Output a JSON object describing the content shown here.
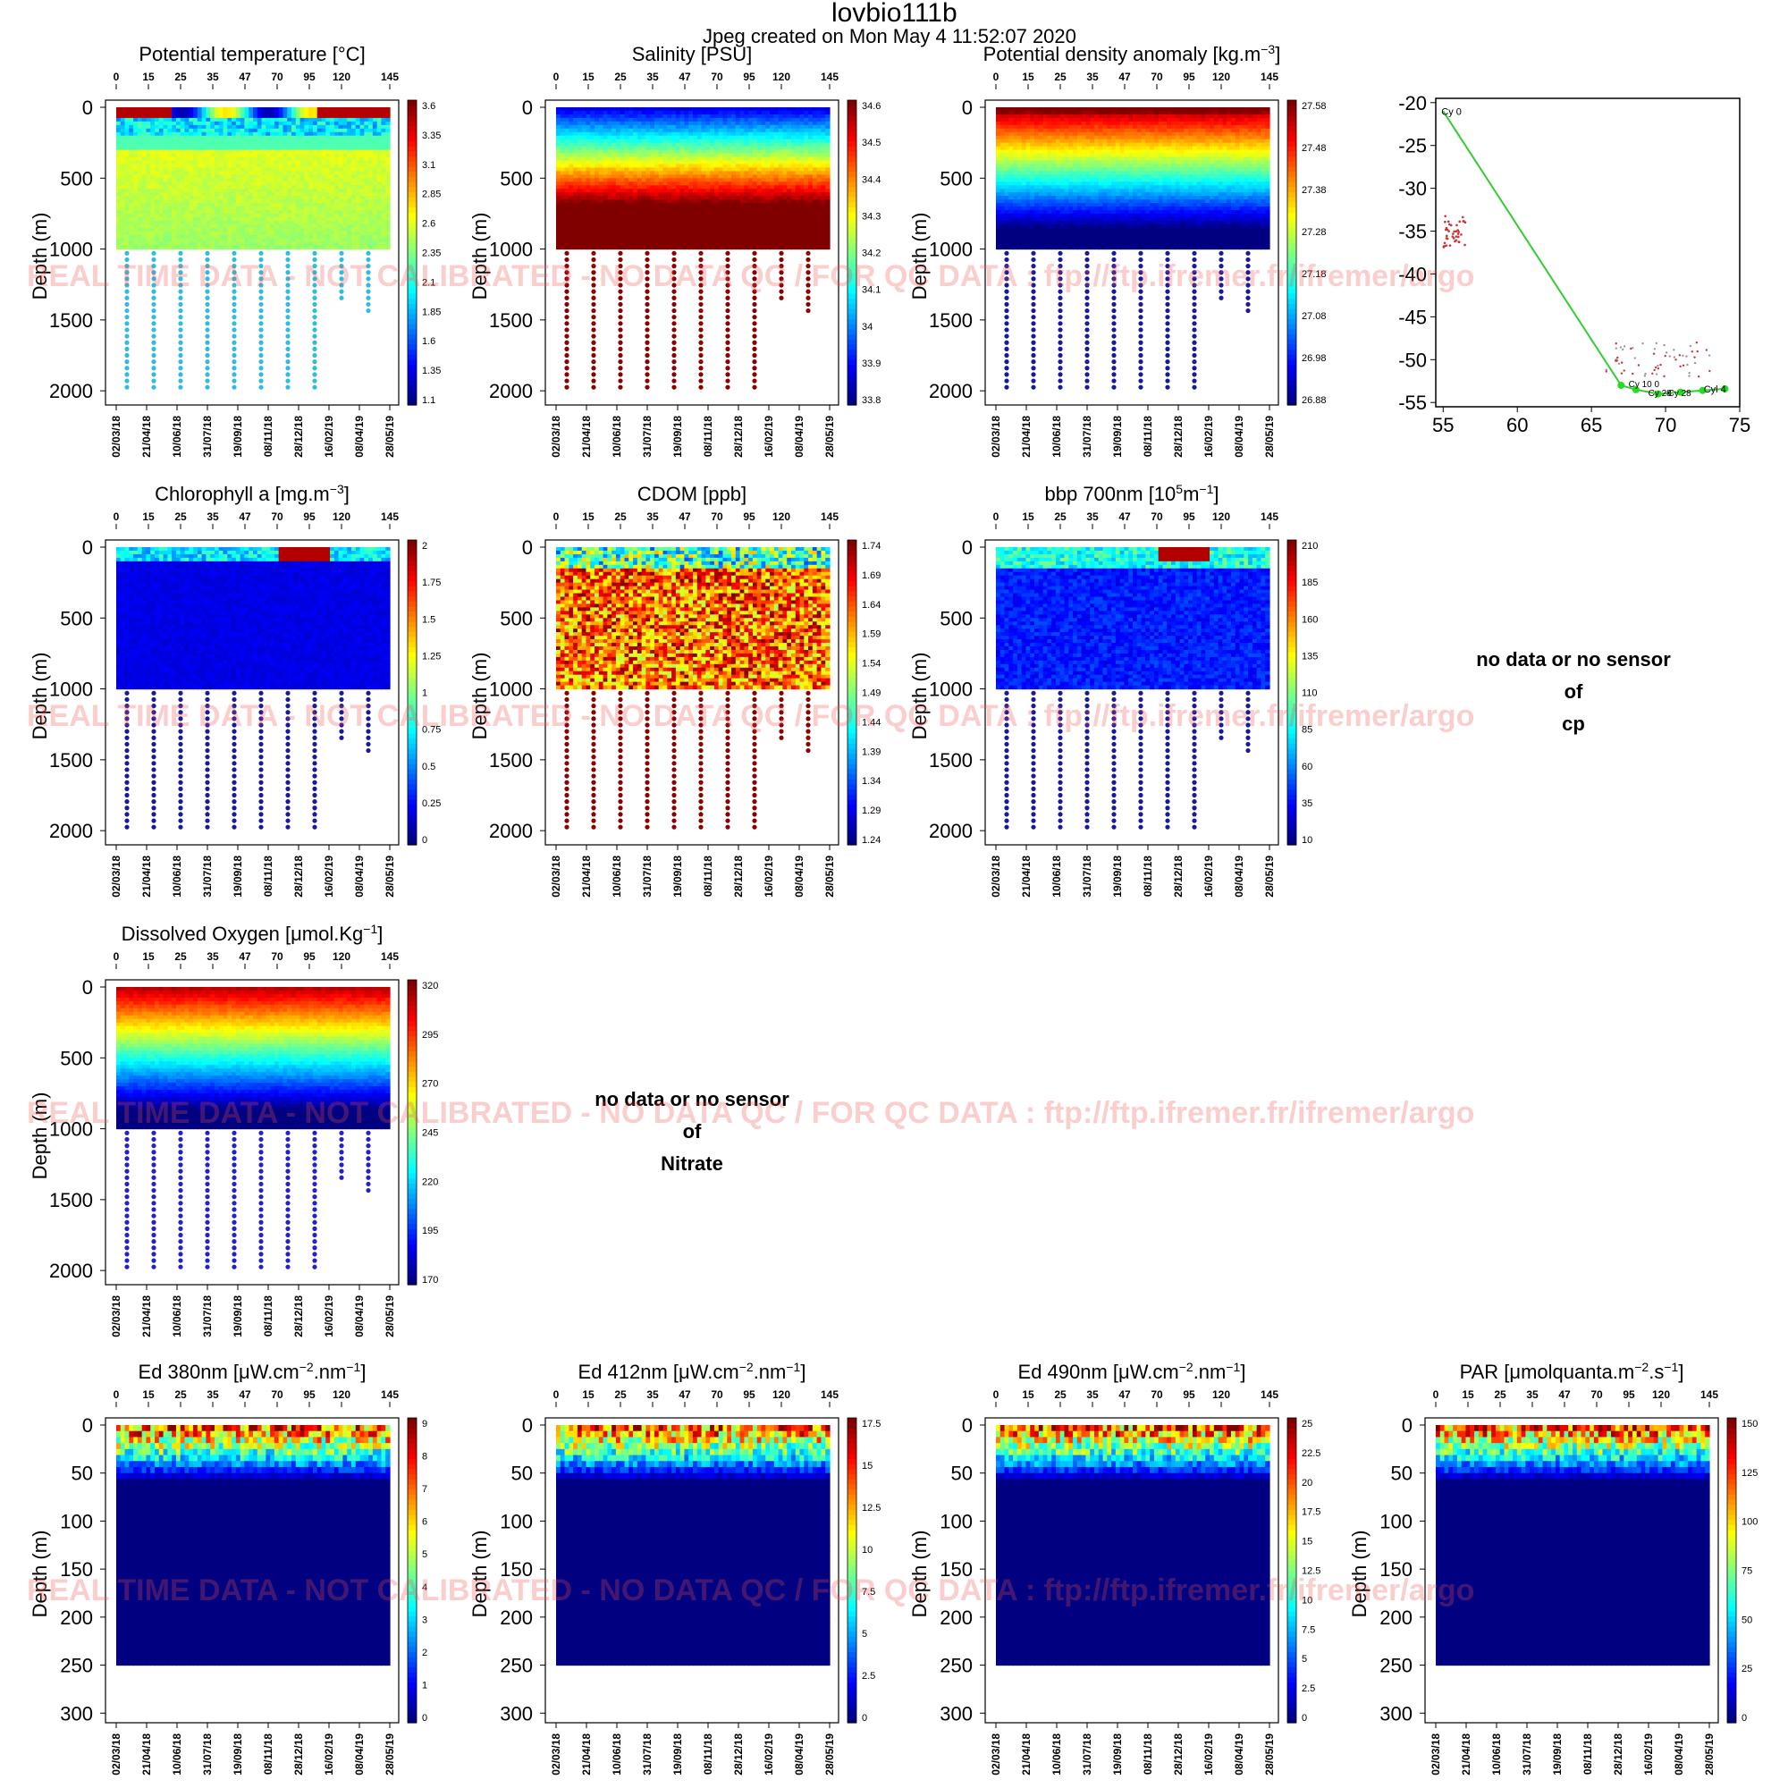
{
  "header": {
    "title": "lovbio111b",
    "subtitle": "Jpeg created on  Mon May  4 11:52:07 2020"
  },
  "watermark": "REAL TIME DATA - NOT CALIBRATED - NO DATA QC   /  FOR QC DATA : ftp://ftp.ifremer.fr/ifremer/argo",
  "nodata": {
    "cp": [
      "no data or no sensor",
      "of",
      "cp"
    ],
    "nitrate": [
      "no data or no sensor",
      "of",
      "Nitrate"
    ]
  },
  "common": {
    "cycles": [
      "0",
      "15",
      "25",
      "35",
      "47",
      "70",
      "95",
      "120",
      "145"
    ],
    "dates": [
      "02/03/18",
      "21/04/18",
      "10/06/18",
      "31/07/18",
      "19/09/18",
      "08/11/18",
      "28/12/18",
      "16/02/19",
      "08/04/19",
      "28/05/19"
    ],
    "ylabel": "Depth (m)"
  },
  "chart_data": [
    {
      "id": "temp",
      "type": "heatmap",
      "title": "Potential temperature [°C]",
      "ylabel": "Depth (m)",
      "ylim": [
        2100,
        0
      ],
      "yticks": [
        "0",
        "500",
        "1000",
        "1500",
        "2000"
      ],
      "colorbar": [
        "1.1",
        "1.35",
        "1.6",
        "1.85",
        "2.1",
        "2.35",
        "2.6",
        "2.85",
        "3.1",
        "3.35",
        "3.6"
      ],
      "deep_profiles": "teal"
    },
    {
      "id": "sal",
      "type": "heatmap",
      "title": "Salinity [PSU]",
      "ylabel": "Depth (m)",
      "ylim": [
        2100,
        0
      ],
      "yticks": [
        "0",
        "500",
        "1000",
        "1500",
        "2000"
      ],
      "colorbar": [
        "33.8",
        "33.9",
        "34",
        "34.1",
        "34.2",
        "34.3",
        "34.4",
        "34.5",
        "34.6"
      ],
      "deep_profiles": "darkred"
    },
    {
      "id": "dens",
      "type": "heatmap",
      "title": "Potential density anomaly [kg.m",
      "title_sup": "−3",
      "title_end": "]",
      "ylabel": "Depth (m)",
      "ylim": [
        2100,
        0
      ],
      "yticks": [
        "0",
        "500",
        "1000",
        "1500",
        "2000"
      ],
      "colorbar": [
        "26.88",
        "26.98",
        "27.08",
        "27.18",
        "27.28",
        "27.38",
        "27.48",
        "27.58"
      ],
      "deep_profiles": "navy"
    },
    {
      "id": "map",
      "type": "scatter",
      "xticks": [
        "55",
        "60",
        "65",
        "70",
        "75"
      ],
      "yticks": [
        "-20",
        "-25",
        "-30",
        "-35",
        "-40",
        "-45",
        "-50",
        "-55"
      ],
      "xlim": [
        54.5,
        75
      ],
      "ylim": [
        -55.5,
        -19.5
      ],
      "start": {
        "lon": 55,
        "lat": -21,
        "label": "Cy 0"
      },
      "end": {
        "lon": 74.5,
        "lat": -53.4,
        "label": "Cyl 4"
      },
      "labels": [
        "Cy 10 0",
        "Cy 28",
        "Cy 28"
      ],
      "track": [
        [
          55,
          -21
        ],
        [
          67,
          -53
        ],
        [
          68,
          -53.5
        ],
        [
          69.5,
          -54
        ],
        [
          71,
          -53.8
        ],
        [
          72.5,
          -53.6
        ],
        [
          74,
          -53.4
        ]
      ]
    },
    {
      "id": "chla",
      "type": "heatmap",
      "title": "Chlorophyll a [mg.m",
      "title_sup": "−3",
      "title_end": "]",
      "ylabel": "Depth (m)",
      "ylim": [
        2100,
        0
      ],
      "yticks": [
        "0",
        "500",
        "1000",
        "1500",
        "2000"
      ],
      "colorbar": [
        "0",
        "0.25",
        "0.5",
        "0.75",
        "1",
        "1.25",
        "1.5",
        "1.75",
        "2"
      ],
      "deep_profiles": "navy"
    },
    {
      "id": "cdom",
      "type": "heatmap",
      "title": "CDOM  [ppb]",
      "ylabel": "Depth (m)",
      "ylim": [
        2100,
        0
      ],
      "yticks": [
        "0",
        "500",
        "1000",
        "1500",
        "2000"
      ],
      "colorbar": [
        "1.24",
        "1.29",
        "1.34",
        "1.39",
        "1.44",
        "1.49",
        "1.54",
        "1.59",
        "1.64",
        "1.69",
        "1.74"
      ],
      "deep_profiles": "darkred"
    },
    {
      "id": "bbp",
      "type": "heatmap",
      "title": "bbp 700nm [10",
      "title_sup": "5",
      "title_mid": "m",
      "title_sup2": "−1",
      "title_end": "]",
      "ylabel": "Depth (m)",
      "ylim": [
        2100,
        0
      ],
      "yticks": [
        "0",
        "500",
        "1000",
        "1500",
        "2000"
      ],
      "colorbar": [
        "10",
        "35",
        "60",
        "85",
        "110",
        "135",
        "160",
        "185",
        "210"
      ],
      "deep_profiles": "navy"
    },
    {
      "id": "oxy",
      "type": "heatmap",
      "title": "Dissolved Oxygen [μmol.Kg",
      "title_sup": "−1",
      "title_end": "]",
      "ylabel": "Depth (m)",
      "ylim": [
        2100,
        0
      ],
      "yticks": [
        "0",
        "500",
        "1000",
        "1500",
        "2000"
      ],
      "colorbar": [
        "170",
        "195",
        "220",
        "245",
        "270",
        "295",
        "320"
      ],
      "deep_profiles": "mediumblue"
    },
    {
      "id": "ed380",
      "type": "heatmap",
      "title": "Ed 380nm [μW.cm",
      "title_sup": "−2",
      "title_mid": ".nm",
      "title_sup2": "−1",
      "title_end": "]",
      "ylabel": "Depth (m)",
      "ylim": [
        310,
        0
      ],
      "yticks": [
        "0",
        "50",
        "100",
        "150",
        "200",
        "250",
        "300"
      ],
      "colorbar": [
        "0",
        "1",
        "2",
        "3",
        "4",
        "5",
        "6",
        "7",
        "8",
        "9"
      ]
    },
    {
      "id": "ed412",
      "type": "heatmap",
      "title": "Ed 412nm [μW.cm",
      "title_sup": "−2",
      "title_mid": ".nm",
      "title_sup2": "−1",
      "title_end": "]",
      "ylabel": "Depth (m)",
      "ylim": [
        310,
        0
      ],
      "yticks": [
        "0",
        "50",
        "100",
        "150",
        "200",
        "250",
        "300"
      ],
      "colorbar": [
        "0",
        "2.5",
        "5",
        "7.5",
        "10",
        "12.5",
        "15",
        "17.5"
      ]
    },
    {
      "id": "ed490",
      "type": "heatmap",
      "title": "Ed 490nm [μW.cm",
      "title_sup": "−2",
      "title_mid": ".nm",
      "title_sup2": "−1",
      "title_end": "]",
      "ylabel": "Depth (m)",
      "ylim": [
        310,
        0
      ],
      "yticks": [
        "0",
        "50",
        "100",
        "150",
        "200",
        "250",
        "300"
      ],
      "colorbar": [
        "0",
        "2.5",
        "5",
        "7.5",
        "10",
        "12.5",
        "15",
        "17.5",
        "20",
        "22.5",
        "25"
      ]
    },
    {
      "id": "par",
      "type": "heatmap",
      "title": "PAR [μmolquanta.m",
      "title_sup": "−2",
      "title_mid": ".s",
      "title_sup2": "−1",
      "title_end": "]",
      "ylabel": "Depth (m)",
      "ylim": [
        310,
        0
      ],
      "yticks": [
        "0",
        "50",
        "100",
        "150",
        "200",
        "250",
        "300"
      ],
      "colorbar": [
        "0",
        "25",
        "50",
        "75",
        "100",
        "125",
        "150"
      ]
    }
  ]
}
